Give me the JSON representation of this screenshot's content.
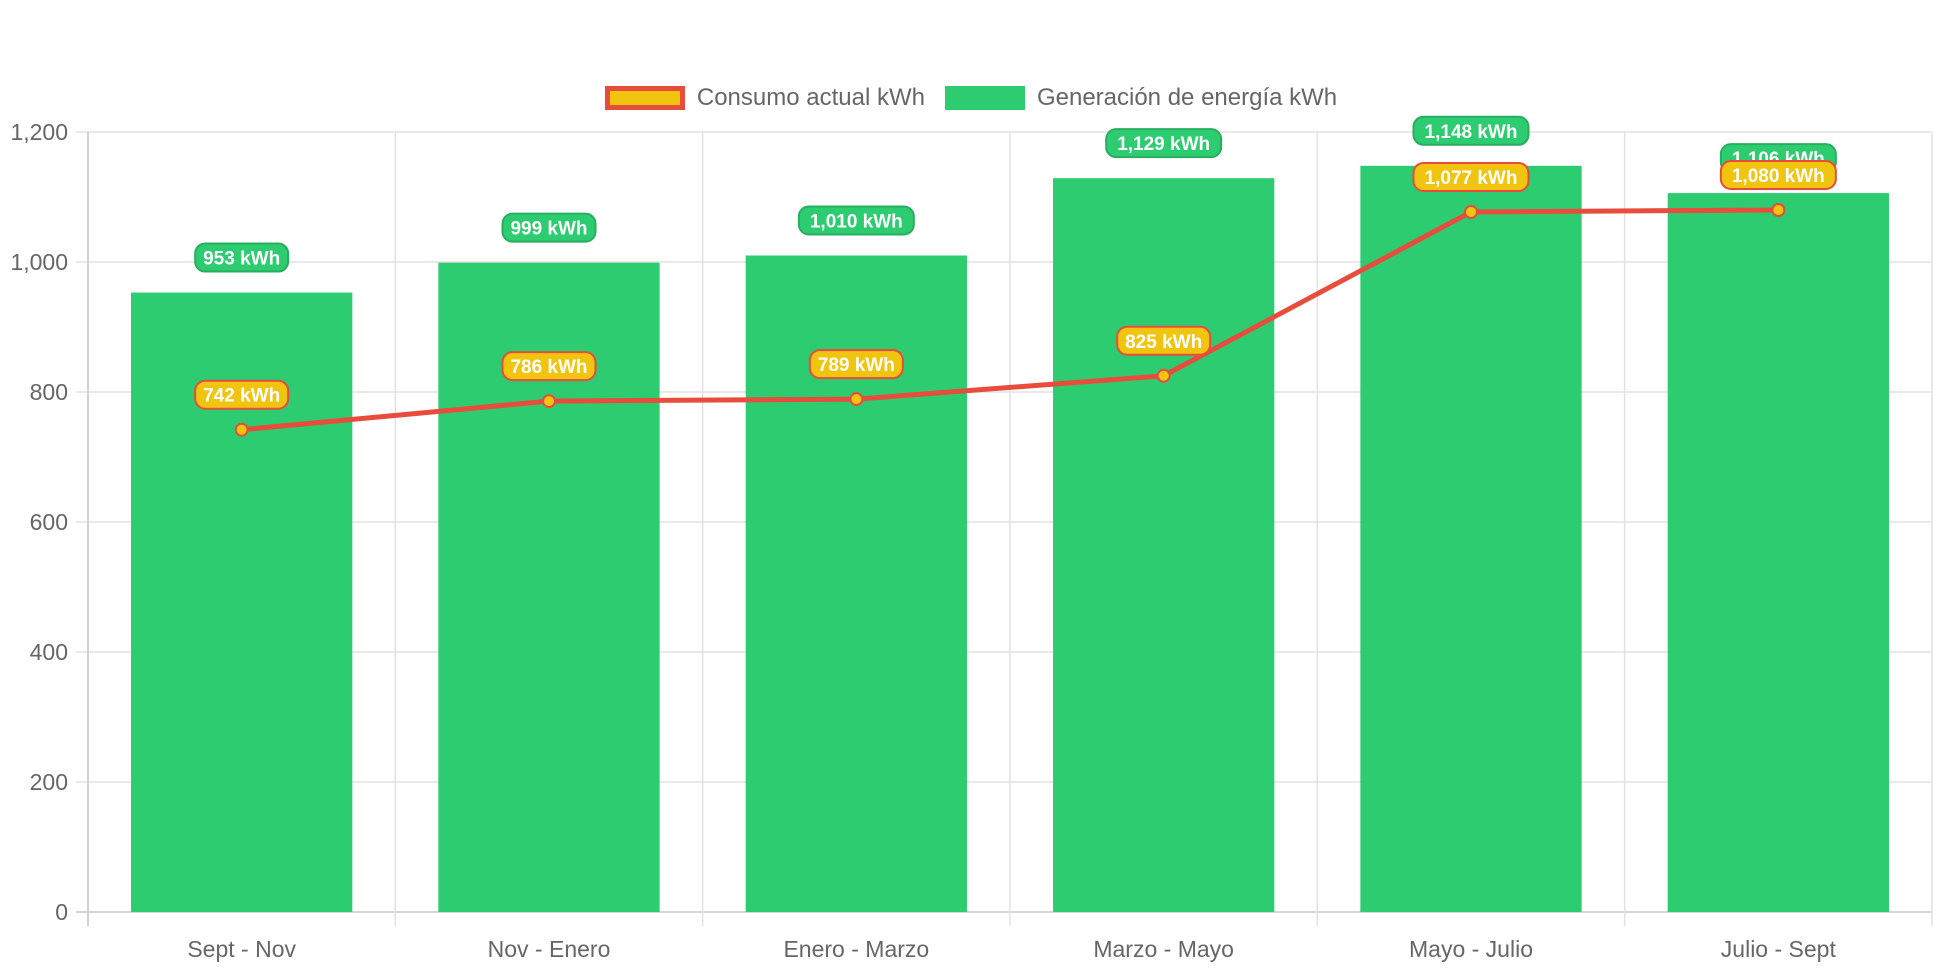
{
  "chart_data": {
    "type": "bar",
    "title": "",
    "xlabel": "",
    "ylabel": "",
    "categories": [
      "Sept - Nov",
      "Nov - Enero",
      "Enero - Marzo",
      "Marzo - Mayo",
      "Mayo - Julio",
      "Julio - Sept"
    ],
    "ylim": [
      0,
      1200
    ],
    "yticks": [
      0,
      200,
      400,
      600,
      800,
      1000,
      1200
    ],
    "ytick_labels": [
      "0",
      "200",
      "400",
      "600",
      "800",
      "1,000",
      "1,200"
    ],
    "grid": true,
    "legend_position": "top",
    "series": [
      {
        "name": "Consumo actual kWh",
        "type": "line",
        "values": [
          742,
          786,
          789,
          825,
          1077,
          1080
        ],
        "labels": [
          "742 kWh",
          "786 kWh",
          "789 kWh",
          "825 kWh",
          "1,077 kWh",
          "1,080 kWh"
        ],
        "color": "#e74c3c",
        "fill_color": "#f1c40f"
      },
      {
        "name": "Generación de energía kWh",
        "type": "bar",
        "values": [
          953,
          999,
          1010,
          1129,
          1148,
          1106
        ],
        "labels": [
          "953 kWh",
          "999 kWh",
          "1,010 kWh",
          "1,129 kWh",
          "1,148 kWh",
          "1,106 kWh"
        ],
        "color": "#2ecc71"
      }
    ]
  }
}
